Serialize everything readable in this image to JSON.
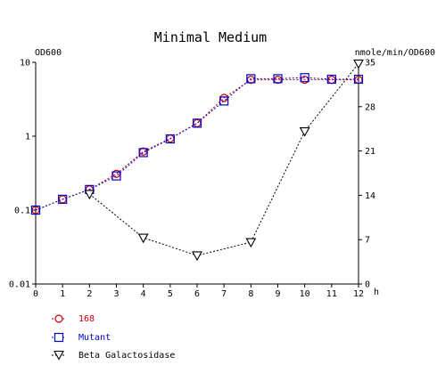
{
  "chart_data": {
    "type": "line",
    "title": "Minimal Medium",
    "xlabel": "h",
    "y_left_label": "OD600",
    "y_right_label": "nmole/min/OD600",
    "y_left_scale": "log",
    "y_left_range": [
      0.01,
      10
    ],
    "y_left_ticks": [
      "10",
      "1",
      "0.1",
      "0.01"
    ],
    "y_right_range": [
      0,
      35
    ],
    "y_right_ticks": [
      "35",
      "28",
      "21",
      "14",
      "7",
      "0"
    ],
    "x_range": [
      0,
      12
    ],
    "x_ticks": [
      "0",
      "1",
      "2",
      "3",
      "4",
      "5",
      "6",
      "7",
      "8",
      "9",
      "10",
      "11",
      "12"
    ],
    "grid": false,
    "legend_position": "bottom-left",
    "series": [
      {
        "name": "168",
        "axis": "left",
        "marker": "circle",
        "color": "#cc0000",
        "x": [
          0,
          1,
          2,
          3,
          4,
          5,
          6,
          7,
          8,
          9,
          10,
          11,
          12
        ],
        "values": [
          0.1,
          0.14,
          0.19,
          0.31,
          0.62,
          0.93,
          1.5,
          3.3,
          5.8,
          5.8,
          5.8,
          5.8,
          5.8
        ]
      },
      {
        "name": "Mutant",
        "axis": "left",
        "marker": "square",
        "color": "#0000cc",
        "x": [
          0,
          1,
          2,
          3,
          4,
          5,
          6,
          7,
          8,
          9,
          10,
          11,
          12
        ],
        "values": [
          0.1,
          0.14,
          0.19,
          0.29,
          0.6,
          0.92,
          1.5,
          3.0,
          6.0,
          6.0,
          6.2,
          5.9,
          5.9
        ]
      },
      {
        "name": "Beta Galactosidase",
        "axis": "right",
        "marker": "triangle-down",
        "color": "#000000",
        "x": [
          2,
          4,
          6,
          8,
          10,
          12
        ],
        "values": [
          14.2,
          7.3,
          4.5,
          6.6,
          24.1,
          34.8
        ]
      }
    ]
  }
}
